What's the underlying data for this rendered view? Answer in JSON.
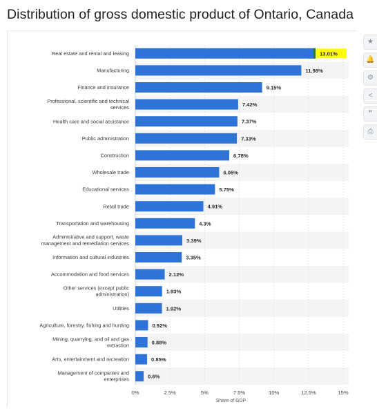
{
  "page": {
    "title": "Distribution of gross domestic product of Ontario, Canada"
  },
  "toolbar": [
    {
      "name": "star-icon",
      "glyph": "★"
    },
    {
      "name": "bell-icon",
      "glyph": "🔔"
    },
    {
      "name": "gear-icon",
      "glyph": "⚙"
    },
    {
      "name": "share-icon",
      "glyph": "<"
    },
    {
      "name": "quote-icon",
      "glyph": "❞"
    },
    {
      "name": "print-icon",
      "glyph": "⎙"
    }
  ],
  "chart_data": {
    "type": "bar",
    "orientation": "horizontal",
    "title": "Distribution of gross domestic product of Ontario, Canada",
    "xlabel": "Share of GDP",
    "ylabel": "",
    "xlim": [
      0,
      15
    ],
    "x_ticks": [
      "0%",
      "2.5%",
      "5%",
      "7.5%",
      "10%",
      "12.5%",
      "15%"
    ],
    "grid": true,
    "bar_color": "#2e74d8",
    "highlight_color": "#ffff00",
    "categories": [
      "Real estate and rental and leasing",
      "Manufacturing",
      "Finance and insurance",
      "Professional, scientific and technical services",
      "Health care and social assistance",
      "Public administration",
      "Construction",
      "Wholesale trade",
      "Educational services",
      "Retail trade",
      "Transportation and warehousing",
      "Administrative and support, waste management and remediation services",
      "Information and cultural industries",
      "Accommodation and food services",
      "Other services (except public administration)",
      "Utilities",
      "Agriculture, forestry, fishing and hunting",
      "Mining, quarrying, and oil and gas extraction",
      "Arts, entertainment and recreation",
      "Management of companies and enterprises"
    ],
    "category_lines": [
      [
        "Real estate and rental and leasing"
      ],
      [
        "Manufacturing"
      ],
      [
        "Finance and insurance"
      ],
      [
        "Professional, scientific and technical",
        "services"
      ],
      [
        "Health care and social assistance"
      ],
      [
        "Public administration"
      ],
      [
        "Construction"
      ],
      [
        "Wholesale trade"
      ],
      [
        "Educational services"
      ],
      [
        "Retail trade"
      ],
      [
        "Transportation and warehousing"
      ],
      [
        "Administrative and support, waste",
        "management and remediation services"
      ],
      [
        "Information and cultural industries"
      ],
      [
        "Accommodation and food services"
      ],
      [
        "Other services (except public",
        "administration)"
      ],
      [
        "Utilities"
      ],
      [
        "Agriculture, forestry, fishing and hunting"
      ],
      [
        "Mining, quarrying, and oil and gas",
        "extraction"
      ],
      [
        "Arts, entertainment and recreation"
      ],
      [
        "Management of companies and",
        "enterprises"
      ]
    ],
    "values": [
      13.01,
      11.98,
      9.15,
      7.42,
      7.37,
      7.33,
      6.78,
      6.05,
      5.75,
      4.91,
      4.3,
      3.39,
      3.35,
      2.12,
      1.93,
      1.92,
      0.92,
      0.88,
      0.85,
      0.6
    ],
    "value_labels": [
      "13.01%",
      "11.98%",
      "9.15%",
      "7.42%",
      "7.37%",
      "7.33%",
      "6.78%",
      "6.05%",
      "5.75%",
      "4.91%",
      "4.3%",
      "3.39%",
      "3.35%",
      "2.12%",
      "1.93%",
      "1.92%",
      "0.92%",
      "0.88%",
      "0.85%",
      "0.6%"
    ],
    "highlighted_index": 0
  }
}
